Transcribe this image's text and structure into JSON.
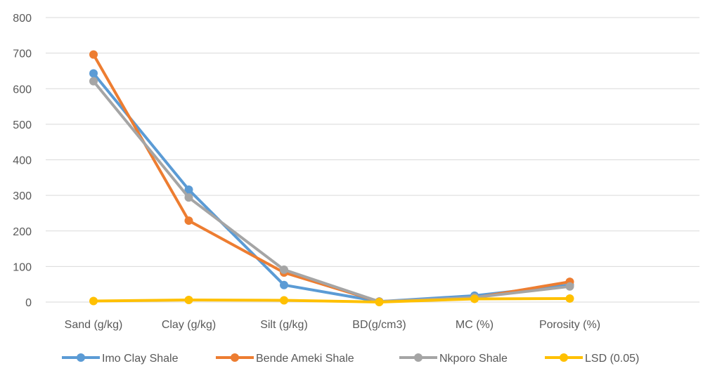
{
  "chart_data": {
    "type": "line",
    "title": "",
    "xlabel": "",
    "ylabel": "",
    "categories": [
      "Sand (g/kg)",
      "Clay (g/kg)",
      "Silt (g/kg)",
      "BD(g/cm3)",
      "MC (%)",
      "Porosity (%)"
    ],
    "y_ticks": [
      "0",
      "100",
      "200",
      "300",
      "400",
      "500",
      "600",
      "700",
      "800"
    ],
    "ylim": [
      0,
      800
    ],
    "grid": true,
    "legend_position": "bottom",
    "series": [
      {
        "name": "Imo Clay Shale",
        "color": "#5B9BD5",
        "values": [
          643,
          316,
          48,
          1.5,
          18,
          48
        ]
      },
      {
        "name": "Bende Ameki Shale",
        "color": "#ED7D31",
        "values": [
          696,
          229,
          83,
          1.4,
          12,
          57
        ]
      },
      {
        "name": "Nkporo Shale",
        "color": "#A5A5A5",
        "values": [
          621,
          294,
          91,
          1.4,
          13,
          44
        ]
      },
      {
        "name": "LSD (0.05)",
        "color": "#FFC000",
        "values": [
          3,
          6,
          5,
          0.1,
          9,
          10
        ]
      }
    ]
  }
}
